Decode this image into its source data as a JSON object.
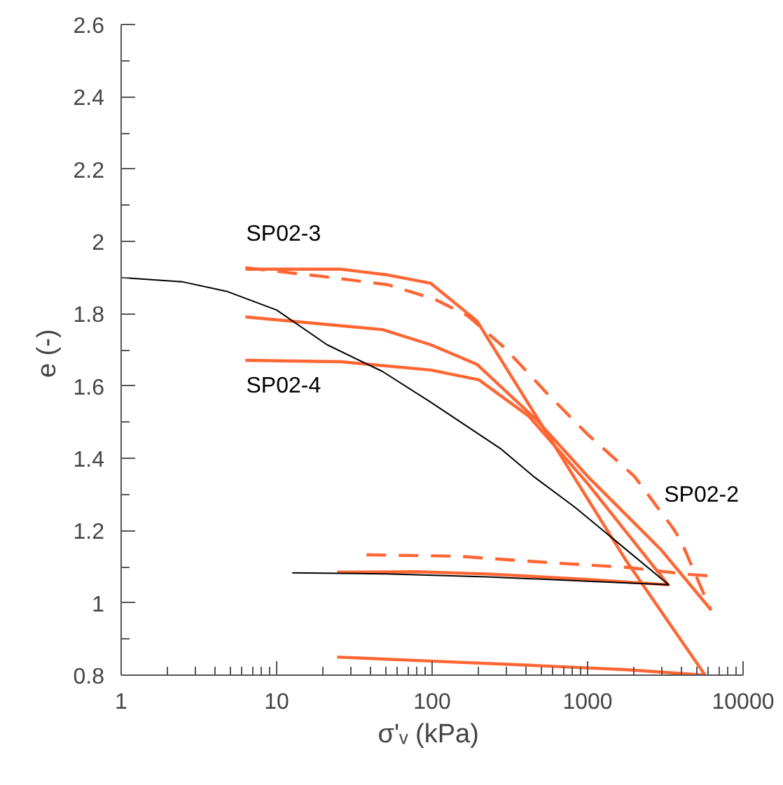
{
  "chart_data": {
    "type": "line",
    "xlabel": "σ'ᵥ  (kPa)",
    "ylabel": "e  (-)",
    "log": "x",
    "xlim": [
      1,
      10000
    ],
    "ylim": [
      0.8,
      2.6
    ],
    "xticks": [
      1,
      10,
      100,
      1000,
      10000
    ],
    "yticks": [
      0.8,
      1,
      1.2,
      1.4,
      1.6,
      1.8,
      2,
      2.2,
      2.4,
      2.6
    ],
    "grid": false,
    "marker": "none",
    "series": [
      {
        "color": "#000000",
        "line_style": "solid",
        "x": [
          1,
          2.49,
          4.84,
          10,
          21.1,
          48,
          98,
          275,
          448,
          826,
          1550,
          3320,
          1000,
          225,
          50,
          12.6
        ],
        "values": [
          1.9,
          1.888,
          1.861,
          1.81,
          1.714,
          1.64,
          1.555,
          1.427,
          1.35,
          1.265,
          1.168,
          1.05,
          1.06,
          1.072,
          1.08,
          1.083
        ]
      },
      {
        "color": "#ff6633",
        "line_style": "solid",
        "x": [
          6.3,
          25.9,
          52,
          98,
          194,
          1750,
          5700,
          1800,
          445,
          98,
          24.5
        ],
        "values": [
          1.923,
          1.923,
          1.907,
          1.884,
          1.78,
          1.12,
          0.8,
          0.815,
          0.827,
          0.839,
          0.85
        ]
      },
      {
        "color": "#ff6633",
        "line_style": "dashed",
        "x": [
          6.3,
          19.8,
          52,
          104,
          168,
          292,
          547,
          1000,
          2000,
          3550,
          4000,
          6200
        ],
        "values": [
          1.927,
          1.903,
          1.88,
          1.84,
          1.795,
          1.706,
          1.58,
          1.466,
          1.35,
          1.206,
          1.17,
          0.98
        ]
      },
      {
        "color": "#ff6633",
        "line_style": "dashed",
        "x": [
          5900,
          4370,
          1800,
          630,
          147,
          37
        ],
        "values": [
          1.075,
          1.079,
          1.098,
          1.11,
          1.129,
          1.133
        ]
      },
      {
        "color": "#ff6633",
        "line_style": "solid",
        "x": [
          6.3,
          48,
          98,
          194,
          472,
          1000,
          2950,
          6240
        ],
        "values": [
          1.791,
          1.756,
          1.714,
          1.66,
          1.505,
          1.35,
          1.148,
          0.98
        ]
      },
      {
        "color": "#ff6633",
        "line_style": "solid",
        "x": [
          6.3,
          25.9,
          98,
          200,
          419,
          1000,
          3300,
          1000,
          225,
          80,
          24.5
        ],
        "values": [
          1.671,
          1.667,
          1.644,
          1.617,
          1.516,
          1.33,
          1.05,
          1.065,
          1.08,
          1.086,
          1.085
        ]
      }
    ],
    "annotations": [
      "SP02-3",
      "SP02-4",
      "SP02-2"
    ]
  }
}
